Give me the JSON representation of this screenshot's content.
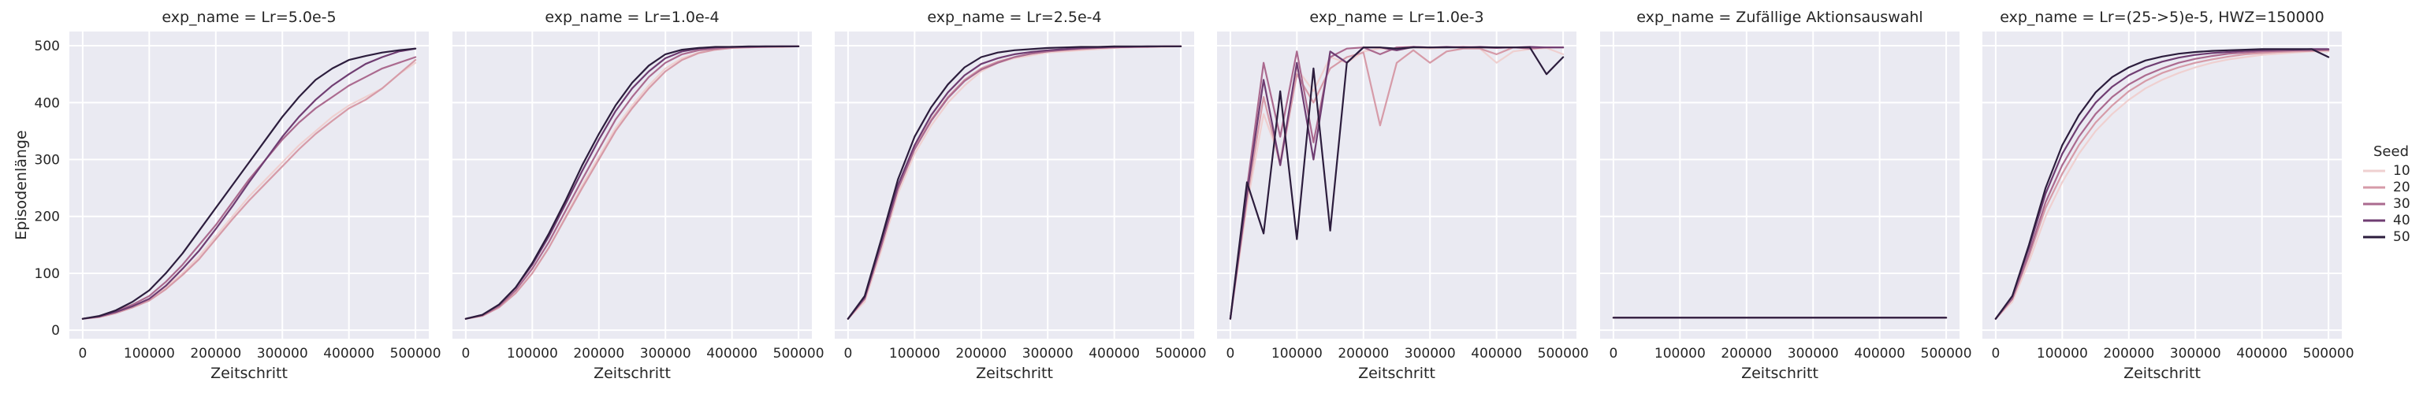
{
  "chart_data": {
    "type": "line",
    "facet_prefix": "exp_name = ",
    "xlabel": "Zeitschritt",
    "ylabel": "Episodenlänge",
    "xlim": [
      -20000,
      520000
    ],
    "ylim": [
      -15,
      525
    ],
    "xticks": [
      0,
      100000,
      200000,
      300000,
      400000,
      500000
    ],
    "yticks": [
      0,
      100,
      200,
      300,
      400,
      500
    ],
    "grid": true,
    "legend": {
      "title": "Seed",
      "placement": "right",
      "entries": [
        {
          "label": "10",
          "color": "#efd0d0"
        },
        {
          "label": "20",
          "color": "#d69ba8"
        },
        {
          "label": "30",
          "color": "#ab6a8f"
        },
        {
          "label": "40",
          "color": "#6f3d72"
        },
        {
          "label": "50",
          "color": "#2c1d3d"
        }
      ]
    },
    "panels": [
      {
        "title": "Lr=5.0e-5",
        "x": [
          0,
          25000,
          50000,
          75000,
          100000,
          125000,
          150000,
          175000,
          200000,
          225000,
          250000,
          275000,
          300000,
          325000,
          350000,
          375000,
          400000,
          425000,
          450000,
          475000,
          500000
        ],
        "series": [
          {
            "name": "10",
            "color": "#efd0d0",
            "values": [
              20,
              24,
              32,
              42,
              55,
              75,
              100,
              130,
              165,
              200,
              235,
              265,
              295,
              325,
              350,
              375,
              395,
              410,
              425,
              450,
              470
            ]
          },
          {
            "name": "20",
            "color": "#d69ba8",
            "values": [
              20,
              23,
              30,
              40,
              52,
              72,
              97,
              125,
              160,
              195,
              228,
              258,
              288,
              318,
              345,
              368,
              390,
              405,
              425,
              450,
              475
            ]
          },
          {
            "name": "30",
            "color": "#ab6a8f",
            "values": [
              20,
              24,
              33,
              45,
              60,
              85,
              115,
              150,
              185,
              225,
              265,
              300,
              335,
              365,
              390,
              410,
              430,
              445,
              460,
              470,
              480
            ]
          },
          {
            "name": "40",
            "color": "#6f3d72",
            "values": [
              20,
              24,
              32,
              42,
              55,
              78,
              108,
              140,
              178,
              218,
              260,
              300,
              340,
              375,
              405,
              430,
              450,
              468,
              480,
              490,
              495
            ]
          },
          {
            "name": "50",
            "color": "#2c1d3d",
            "values": [
              20,
              25,
              35,
              50,
              70,
              100,
              135,
              175,
              215,
              255,
              295,
              335,
              375,
              410,
              440,
              460,
              475,
              482,
              488,
              492,
              495
            ]
          }
        ]
      },
      {
        "title": "Lr=1.0e-4",
        "x": [
          0,
          25000,
          50000,
          75000,
          100000,
          125000,
          150000,
          175000,
          200000,
          225000,
          250000,
          275000,
          300000,
          325000,
          350000,
          375000,
          400000,
          425000,
          450000,
          475000,
          500000
        ],
        "series": [
          {
            "name": "10",
            "color": "#efd0d0",
            "values": [
              20,
              25,
              40,
              65,
              100,
              145,
              200,
              255,
              305,
              355,
              395,
              430,
              460,
              478,
              488,
              493,
              496,
              497,
              498,
              498,
              499
            ]
          },
          {
            "name": "20",
            "color": "#d69ba8",
            "values": [
              20,
              25,
              40,
              65,
              100,
              145,
              198,
              250,
              300,
              350,
              390,
              425,
              455,
              475,
              487,
              493,
              496,
              497,
              498,
              498,
              499
            ]
          },
          {
            "name": "30",
            "color": "#ab6a8f",
            "values": [
              20,
              26,
              42,
              70,
              108,
              155,
              210,
              265,
              318,
              370,
              410,
              445,
              470,
              485,
              492,
              495,
              497,
              498,
              498,
              499,
              499
            ]
          },
          {
            "name": "40",
            "color": "#6f3d72",
            "values": [
              20,
              27,
              45,
              75,
              115,
              165,
              222,
              280,
              335,
              385,
              425,
              455,
              478,
              490,
              495,
              497,
              498,
              498,
              499,
              499,
              499
            ]
          },
          {
            "name": "50",
            "color": "#2c1d3d",
            "values": [
              20,
              27,
              45,
              75,
              118,
              170,
              228,
              290,
              345,
              395,
              435,
              465,
              485,
              493,
              496,
              498,
              498,
              499,
              499,
              499,
              499
            ]
          }
        ]
      },
      {
        "title": "Lr=2.5e-4",
        "x": [
          0,
          25000,
          50000,
          75000,
          100000,
          125000,
          150000,
          175000,
          200000,
          225000,
          250000,
          275000,
          300000,
          325000,
          350000,
          375000,
          400000,
          425000,
          450000,
          475000,
          500000
        ],
        "series": [
          {
            "name": "10",
            "color": "#efd0d0",
            "values": [
              20,
              50,
              140,
              240,
              310,
              360,
              400,
              430,
              455,
              470,
              478,
              483,
              488,
              490,
              492,
              494,
              496,
              497,
              498,
              498,
              499
            ]
          },
          {
            "name": "20",
            "color": "#d69ba8",
            "values": [
              20,
              55,
              150,
              250,
              320,
              370,
              410,
              440,
              460,
              472,
              480,
              486,
              490,
              492,
              494,
              496,
              497,
              498,
              498,
              499,
              499
            ]
          },
          {
            "name": "30",
            "color": "#ab6a8f",
            "values": [
              20,
              55,
              148,
              248,
              318,
              368,
              408,
              438,
              458,
              470,
              480,
              486,
              490,
              493,
              495,
              496,
              497,
              498,
              498,
              499,
              499
            ]
          },
          {
            "name": "40",
            "color": "#6f3d72",
            "values": [
              20,
              58,
              155,
              255,
              325,
              378,
              418,
              448,
              468,
              478,
              485,
              489,
              492,
              494,
              496,
              497,
              498,
              498,
              499,
              499,
              499
            ]
          },
          {
            "name": "50",
            "color": "#2c1d3d",
            "values": [
              20,
              60,
              160,
              265,
              340,
              392,
              432,
              462,
              480,
              488,
              492,
              494,
              496,
              497,
              498,
              498,
              499,
              499,
              499,
              499,
              499
            ]
          }
        ]
      },
      {
        "title": "Lr=1.0e-3",
        "x": [
          0,
          25000,
          50000,
          75000,
          100000,
          125000,
          150000,
          175000,
          200000,
          225000,
          250000,
          275000,
          300000,
          325000,
          350000,
          375000,
          400000,
          425000,
          450000,
          475000,
          500000
        ],
        "series": [
          {
            "name": "10",
            "color": "#efd0d0",
            "values": [
              20,
              220,
              380,
              300,
              460,
              420,
              480,
              470,
              490,
              495,
              492,
              497,
              495,
              497,
              497,
              495,
              470,
              490,
              494,
              496,
              485
            ]
          },
          {
            "name": "20",
            "color": "#d69ba8",
            "values": [
              20,
              230,
              410,
              290,
              450,
              400,
              460,
              480,
              488,
              360,
              470,
              492,
              470,
              490,
              495,
              495,
              485,
              497,
              496,
              497,
              497
            ]
          },
          {
            "name": "30",
            "color": "#ab6a8f",
            "values": [
              20,
              250,
              470,
              340,
              490,
              330,
              480,
              495,
              497,
              485,
              497,
              498,
              497,
              497,
              498,
              497,
              496,
              497,
              495,
              497,
              497
            ]
          },
          {
            "name": "40",
            "color": "#6f3d72",
            "values": [
              20,
              240,
              440,
              290,
              470,
              300,
              490,
              470,
              497,
              497,
              492,
              498,
              497,
              498,
              497,
              498,
              497,
              497,
              498,
              497,
              497
            ]
          },
          {
            "name": "50",
            "color": "#2c1d3d",
            "values": [
              20,
              260,
              170,
              420,
              160,
              460,
              175,
              470,
              497,
              497,
              495,
              497,
              497,
              497,
              497,
              497,
              497,
              497,
              497,
              450,
              480
            ]
          }
        ]
      },
      {
        "title": "Zufällige Aktionsauswahl",
        "x": [
          0,
          25000,
          50000,
          75000,
          100000,
          125000,
          150000,
          175000,
          200000,
          225000,
          250000,
          275000,
          300000,
          325000,
          350000,
          375000,
          400000,
          425000,
          450000,
          475000,
          500000
        ],
        "series": [
          {
            "name": "10",
            "color": "#efd0d0",
            "values": [
              22,
              22,
              22,
              22,
              22,
              22,
              22,
              22,
              22,
              22,
              22,
              22,
              22,
              22,
              22,
              22,
              22,
              22,
              22,
              22,
              22
            ]
          },
          {
            "name": "20",
            "color": "#d69ba8",
            "values": [
              22,
              22,
              22,
              22,
              22,
              22,
              22,
              22,
              22,
              22,
              22,
              22,
              22,
              22,
              22,
              22,
              22,
              22,
              22,
              22,
              22
            ]
          },
          {
            "name": "30",
            "color": "#ab6a8f",
            "values": [
              22,
              22,
              22,
              22,
              22,
              22,
              22,
              22,
              22,
              22,
              22,
              22,
              22,
              22,
              22,
              22,
              22,
              22,
              22,
              22,
              22
            ]
          },
          {
            "name": "40",
            "color": "#6f3d72",
            "values": [
              22,
              22,
              22,
              22,
              22,
              22,
              22,
              22,
              22,
              22,
              22,
              22,
              22,
              22,
              22,
              22,
              22,
              22,
              22,
              22,
              22
            ]
          },
          {
            "name": "50",
            "color": "#2c1d3d",
            "values": [
              22,
              22,
              22,
              22,
              22,
              22,
              22,
              22,
              22,
              22,
              22,
              22,
              22,
              22,
              22,
              22,
              22,
              22,
              22,
              22,
              22
            ]
          }
        ]
      },
      {
        "title": "Lr=(25->5)e-5, HWZ=150000",
        "x": [
          0,
          25000,
          50000,
          75000,
          100000,
          125000,
          150000,
          175000,
          200000,
          225000,
          250000,
          275000,
          300000,
          325000,
          350000,
          375000,
          400000,
          425000,
          450000,
          475000,
          500000
        ],
        "series": [
          {
            "name": "10",
            "color": "#efd0d0",
            "values": [
              20,
              50,
              120,
              200,
              260,
              310,
              350,
              380,
              405,
              425,
              440,
              452,
              462,
              470,
              476,
              480,
              484,
              486,
              488,
              490,
              490
            ]
          },
          {
            "name": "20",
            "color": "#d69ba8",
            "values": [
              20,
              55,
              130,
              215,
              275,
              325,
              365,
              395,
              420,
              438,
              452,
              462,
              470,
              476,
              481,
              485,
              487,
              489,
              490,
              491,
              492
            ]
          },
          {
            "name": "30",
            "color": "#ab6a8f",
            "values": [
              20,
              55,
              135,
              225,
              290,
              340,
              380,
              410,
              432,
              448,
              460,
              470,
              477,
              482,
              486,
              488,
              490,
              491,
              492,
              492,
              493
            ]
          },
          {
            "name": "40",
            "color": "#6f3d72",
            "values": [
              20,
              60,
              145,
              240,
              310,
              360,
              400,
              428,
              448,
              462,
              472,
              479,
              484,
              487,
              489,
              491,
              492,
              493,
              493,
              494,
              494
            ]
          },
          {
            "name": "50",
            "color": "#2c1d3d",
            "values": [
              20,
              60,
              150,
              250,
              325,
              378,
              418,
              445,
              462,
              474,
              481,
              486,
              489,
              491,
              492,
              493,
              494,
              494,
              494,
              494,
              480
            ]
          }
        ]
      }
    ]
  }
}
